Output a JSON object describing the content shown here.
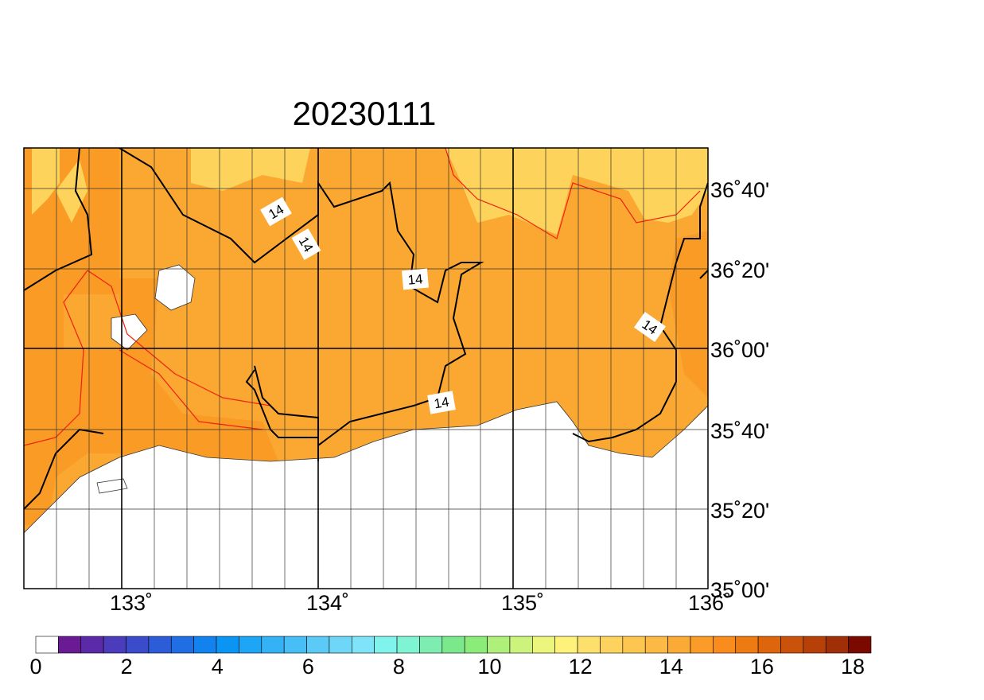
{
  "title": "20230111",
  "lon_labels": [
    "133˚",
    "134˚",
    "135˚",
    "136˚"
  ],
  "lat_labels": [
    "36˚40'",
    "36˚20'",
    "36˚00'",
    "35˚40'",
    "35˚20'",
    "35˚00'"
  ],
  "contour_labels": [
    "14",
    "14",
    "14",
    "14",
    "14"
  ],
  "colorbar": {
    "ticks": [
      0,
      2,
      4,
      6,
      8,
      10,
      12,
      14,
      16,
      18
    ],
    "colors": [
      "#ffffff",
      "#6a1a92",
      "#5a2aa8",
      "#4a3cba",
      "#3a4ccb",
      "#2c5cd8",
      "#1f6ee4",
      "#1282ef",
      "#0a95f5",
      "#1da5f6",
      "#33b2f6",
      "#48bef6",
      "#5ccaf7",
      "#6fd6f8",
      "#7fe4fa",
      "#80f4ec",
      "#7ff4d2",
      "#7eeeb0",
      "#7be88c",
      "#8cec7a",
      "#aef07a",
      "#ccf47c",
      "#ecf67c",
      "#fef27a",
      "#fde06c",
      "#fdd35e",
      "#fdc64f",
      "#fcba44",
      "#fbab35",
      "#fb9c28",
      "#f98c1c",
      "#ee7a12",
      "#de650c",
      "#ca520a",
      "#b64008",
      "#a02e06",
      "#7a0a00"
    ]
  }
}
